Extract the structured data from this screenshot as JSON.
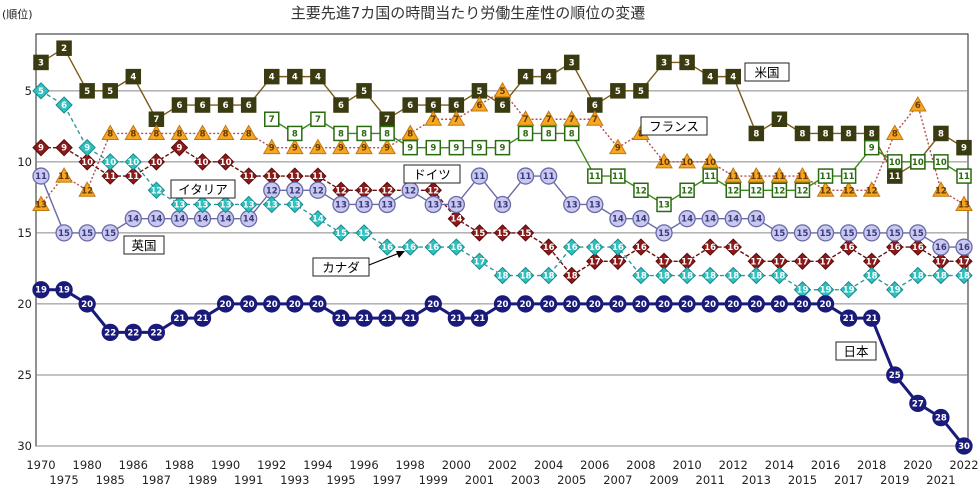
{
  "chart_data": {
    "type": "line",
    "title": "主要先進7カ国の時間当たり労働生産性の順位の変遷",
    "ylabel": "(順位)",
    "y_reversed": true,
    "ylim": [
      1,
      30
    ],
    "yticks": [
      5,
      10,
      15,
      20,
      25,
      30
    ],
    "grid": true,
    "x_ticks_row1": [
      "1970",
      "1980",
      "1986",
      "1988",
      "1990",
      "1992",
      "1994",
      "1996",
      "1998",
      "2000",
      "2002",
      "2004",
      "2006",
      "2008",
      "2010",
      "2012",
      "2014",
      "2016",
      "2018",
      "2020",
      "2022"
    ],
    "x_ticks_row2": [
      "1975",
      "1985",
      "1987",
      "1989",
      "1991",
      "1993",
      "1995",
      "1997",
      "1999",
      "2001",
      "2003",
      "2005",
      "2007",
      "2009",
      "2011",
      "2013",
      "2015",
      "2017",
      "2019",
      "2021"
    ],
    "x": [
      "1970",
      "1975",
      "1980",
      "1985",
      "1986",
      "1987",
      "1988",
      "1989",
      "1990",
      "1991",
      "1992",
      "1993",
      "1994",
      "1995",
      "1996",
      "1997",
      "1998",
      "1999",
      "2000",
      "2001",
      "2002",
      "2003",
      "2004",
      "2005",
      "2006",
      "2007",
      "2008",
      "2009",
      "2010",
      "2011",
      "2012",
      "2013",
      "2014",
      "2015",
      "2016",
      "2017",
      "2018",
      "2019",
      "2020",
      "2021",
      "2022"
    ],
    "series": [
      {
        "name": "米国",
        "color": "#5a3a10",
        "marker": "square-dark",
        "values": [
          3,
          2,
          5,
          5,
          4,
          7,
          6,
          6,
          6,
          6,
          4,
          4,
          4,
          6,
          5,
          7,
          6,
          6,
          6,
          5,
          6,
          4,
          4,
          3,
          6,
          5,
          5,
          3,
          3,
          4,
          4,
          8,
          7,
          8,
          8,
          8,
          8,
          11,
          10,
          8,
          9
        ]
      },
      {
        "name": "フランス",
        "color": "#e08a1a",
        "marker": "triangle",
        "values": [
          13,
          11,
          12,
          8,
          8,
          8,
          8,
          8,
          8,
          8,
          9,
          9,
          9,
          9,
          9,
          9,
          8,
          7,
          7,
          6,
          5,
          7,
          7,
          7,
          7,
          9,
          8,
          10,
          10,
          10,
          11,
          11,
          11,
          11,
          12,
          12,
          12,
          8,
          6,
          12,
          13
        ]
      },
      {
        "name": "ドイツ",
        "color": "#3a8a1a",
        "marker": "square-green",
        "values": [
          null,
          null,
          null,
          null,
          null,
          null,
          null,
          null,
          null,
          null,
          7,
          8,
          7,
          8,
          8,
          8,
          9,
          9,
          9,
          9,
          9,
          8,
          8,
          8,
          11,
          11,
          12,
          13,
          12,
          11,
          12,
          12,
          12,
          12,
          11,
          11,
          9,
          10,
          10,
          10,
          11
        ]
      },
      {
        "name": "イタリア",
        "color": "#8b1a1a",
        "marker": "diamond",
        "values": [
          9,
          9,
          10,
          11,
          11,
          10,
          9,
          10,
          10,
          11,
          11,
          11,
          11,
          12,
          12,
          12,
          12,
          12,
          14,
          15,
          15,
          15,
          16,
          18,
          17,
          17,
          16,
          17,
          17,
          16,
          16,
          17,
          17,
          17,
          17,
          16,
          17,
          16,
          16,
          17,
          17
        ]
      },
      {
        "name": "英国",
        "color": "#6a6aa8",
        "marker": "circle",
        "values": [
          11,
          15,
          15,
          15,
          14,
          14,
          14,
          14,
          14,
          14,
          12,
          12,
          12,
          13,
          13,
          13,
          12,
          13,
          13,
          11,
          13,
          11,
          11,
          13,
          13,
          14,
          14,
          15,
          14,
          14,
          14,
          14,
          15,
          15,
          15,
          15,
          15,
          15,
          15,
          16,
          16
        ]
      },
      {
        "name": "カナダ",
        "color": "#2a9a9a",
        "marker": "diamond-teal",
        "values": [
          5,
          6,
          9,
          10,
          10,
          12,
          13,
          13,
          13,
          13,
          13,
          13,
          14,
          15,
          15,
          16,
          16,
          16,
          16,
          17,
          18,
          18,
          18,
          16,
          16,
          16,
          18,
          18,
          18,
          18,
          18,
          18,
          18,
          19,
          19,
          19,
          18,
          19,
          18,
          18,
          18
        ]
      },
      {
        "name": "日本",
        "color": "#1a1a7a",
        "marker": "circle-navy",
        "values": [
          19,
          19,
          20,
          22,
          22,
          22,
          21,
          21,
          20,
          20,
          20,
          20,
          20,
          21,
          21,
          21,
          21,
          20,
          21,
          21,
          20,
          20,
          20,
          20,
          20,
          20,
          20,
          20,
          20,
          20,
          20,
          20,
          20,
          20,
          20,
          21,
          21,
          25,
          27,
          28,
          30
        ]
      }
    ]
  }
}
